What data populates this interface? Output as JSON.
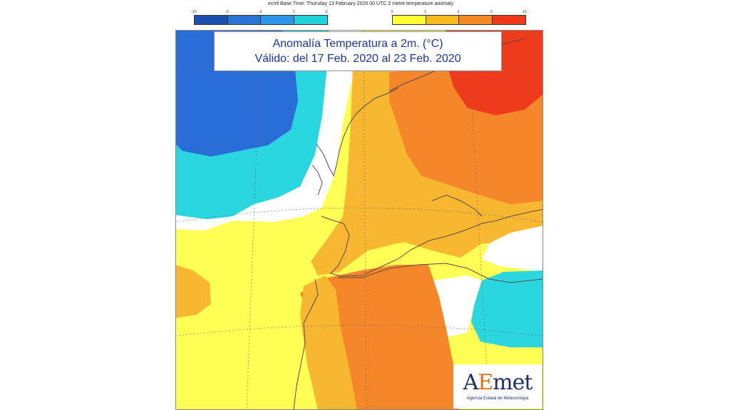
{
  "header": {
    "base_time_text": "ecmf  Base Time: Thursday 13 February 2020 00 UTC 2 metre temperature anomaly"
  },
  "colorbar_cold": {
    "ticks": [
      "-10",
      "-6",
      "-3",
      "-1",
      "0"
    ],
    "colors": [
      "#1b4fb0",
      "#2a74d6",
      "#2d96e8",
      "#1fd2dc"
    ]
  },
  "colorbar_warm": {
    "ticks": [
      "0",
      "1",
      "3",
      "6",
      "10"
    ],
    "colors": [
      "#ffff33",
      "#f6bb20",
      "#f58a24",
      "#ee3a18"
    ]
  },
  "title": {
    "line1": "Anomalía Temperatura a 2m. (°C)",
    "line2": "Válido: del 17 Feb. 2020 al 23 Feb. 2020"
  },
  "logo": {
    "mark_a": "A",
    "mark_e": "E",
    "mark_rest": "met",
    "subtitle": "Agencia Estatal de Meteorología"
  },
  "map": {
    "background_color": "#ffff55",
    "fill_colors": {
      "white": "#ffffff",
      "cyan": "#2ad6df",
      "blue": "#2a6dd6",
      "light_orange": "#f8b730",
      "orange": "#f5862a",
      "red": "#ee3b1c",
      "yellow": "#ffff55"
    }
  }
}
